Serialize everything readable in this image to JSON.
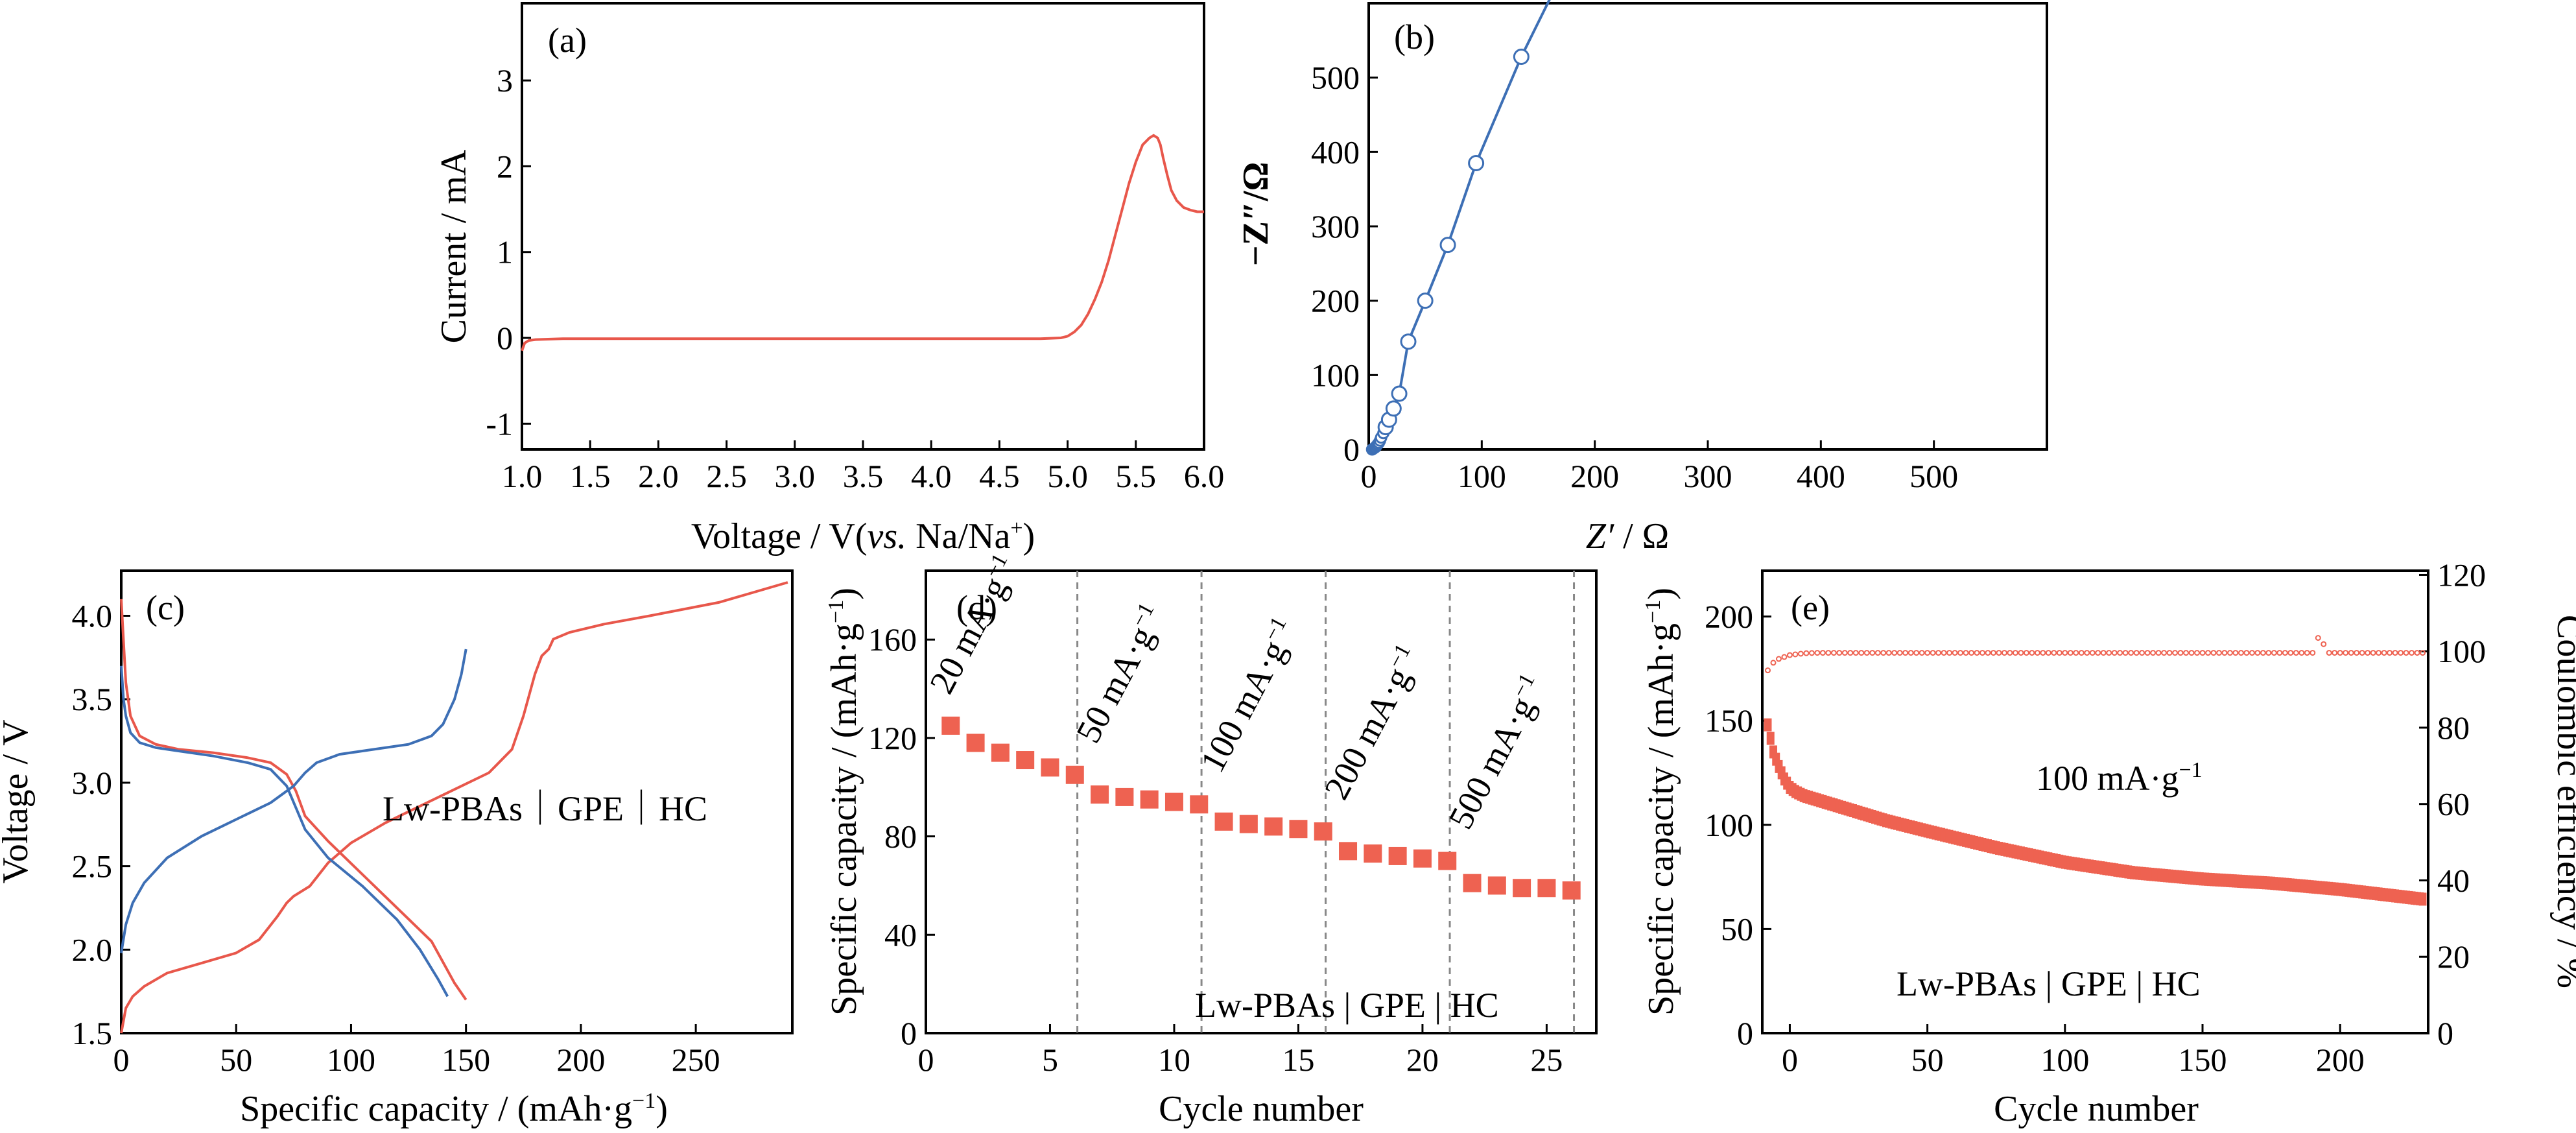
{
  "chart_data": [
    {
      "id": "a",
      "type": "line",
      "panel_label": "(a)",
      "xlabel_main": "Voltage / V(",
      "xlabel_italic": "vs.",
      "xlabel_tail": " Na/Na",
      "xlabel_sup": "+",
      "xlabel_close": ")",
      "ylabel": "Current / mA",
      "xlim": [
        1.0,
        6.0
      ],
      "ylim": [
        -1.3,
        3.9
      ],
      "xticks": [
        "1.0",
        "1.5",
        "2.0",
        "2.5",
        "3.0",
        "3.5",
        "4.0",
        "4.5",
        "5.0",
        "5.5",
        "6.0"
      ],
      "yticks": [
        "-1",
        "0",
        "1",
        "2",
        "3"
      ],
      "line_color": "#e8574b",
      "series": [
        {
          "x": [
            1.0,
            1.02,
            1.05,
            1.1,
            1.3,
            1.5,
            2.0,
            2.5,
            3.0,
            3.5,
            4.0,
            4.5,
            4.8,
            4.95,
            5.0,
            5.05,
            5.1,
            5.15,
            5.2,
            5.25,
            5.3,
            5.35,
            5.4,
            5.45,
            5.5,
            5.55,
            5.6,
            5.63,
            5.66,
            5.68,
            5.7,
            5.73,
            5.76,
            5.8,
            5.85,
            5.9,
            5.95,
            6.0
          ],
          "y": [
            -0.15,
            -0.06,
            -0.03,
            -0.02,
            -0.01,
            -0.01,
            -0.01,
            -0.01,
            -0.01,
            -0.01,
            -0.01,
            -0.01,
            -0.01,
            0.0,
            0.02,
            0.07,
            0.15,
            0.28,
            0.45,
            0.65,
            0.9,
            1.2,
            1.5,
            1.8,
            2.05,
            2.25,
            2.33,
            2.36,
            2.33,
            2.25,
            2.1,
            1.9,
            1.72,
            1.6,
            1.52,
            1.49,
            1.47,
            1.47
          ]
        }
      ]
    },
    {
      "id": "b",
      "type": "scatter",
      "panel_label": "(b)",
      "xlabel_main": "Z′",
      "xlabel_tail": " / Ω",
      "ylabel_main": "−Z″",
      "ylabel_tail": "/Ω",
      "xlim": [
        0,
        600
      ],
      "ylim": [
        0,
        600
      ],
      "xticks": [
        "0",
        "100",
        "200",
        "300",
        "400",
        "500"
      ],
      "yticks": [
        "0",
        "100",
        "200",
        "300",
        "400",
        "500"
      ],
      "line_color": "#3d6fb5",
      "series": [
        {
          "x": [
            3,
            4,
            5,
            6,
            7,
            8,
            9,
            10,
            11,
            13,
            15,
            18,
            22,
            27,
            35,
            50,
            70,
            95,
            135,
            160
          ],
          "y": [
            0,
            1,
            2,
            3,
            5,
            7,
            9,
            12,
            16,
            22,
            30,
            40,
            55,
            75,
            145,
            200,
            275,
            385,
            528,
            605
          ],
          "markers": [
            true,
            true,
            true,
            true,
            true,
            true,
            true,
            true,
            true,
            true,
            true,
            true,
            true,
            true,
            true,
            true,
            true,
            true,
            true,
            false
          ]
        }
      ]
    },
    {
      "id": "c",
      "type": "line",
      "panel_label": "(c)",
      "annotation": "Lw-PBAs｜GPE｜HC",
      "xlabel": "Specific capacity / (mAh·g",
      "xlabel_sup": "−1",
      "xlabel_close": ")",
      "ylabel": "Voltage / V",
      "xlim": [
        0,
        292
      ],
      "ylim": [
        1.5,
        4.27
      ],
      "xticks": [
        "0",
        "50",
        "100",
        "150",
        "200",
        "250"
      ],
      "yticks": [
        "1.5",
        "2.0",
        "2.5",
        "3.0",
        "3.5",
        "4.0"
      ],
      "series": [
        {
          "color": "#e8574b",
          "x": [
            0,
            2,
            5,
            10,
            20,
            35,
            50,
            60,
            68,
            72,
            75,
            82,
            90,
            100,
            115,
            130,
            145,
            160,
            170,
            175,
            180,
            183,
            186,
            188,
            195,
            210,
            230,
            260,
            290
          ],
          "y": [
            1.5,
            1.65,
            1.72,
            1.78,
            1.86,
            1.92,
            1.98,
            2.06,
            2.2,
            2.28,
            2.32,
            2.38,
            2.52,
            2.64,
            2.76,
            2.86,
            2.96,
            3.06,
            3.2,
            3.4,
            3.65,
            3.76,
            3.8,
            3.86,
            3.9,
            3.95,
            4.0,
            4.08,
            4.2
          ]
        },
        {
          "color": "#e8574b",
          "x": [
            0,
            1,
            2,
            4,
            8,
            15,
            25,
            40,
            55,
            65,
            72,
            76,
            80,
            90,
            105,
            120,
            135,
            145,
            150
          ],
          "y": [
            4.1,
            3.85,
            3.6,
            3.4,
            3.28,
            3.23,
            3.2,
            3.18,
            3.15,
            3.12,
            3.05,
            2.95,
            2.8,
            2.65,
            2.45,
            2.25,
            2.05,
            1.8,
            1.7
          ]
        },
        {
          "color": "#3d6fb5",
          "x": [
            0,
            2,
            5,
            10,
            20,
            35,
            50,
            65,
            75,
            80,
            85,
            95,
            110,
            125,
            135,
            140,
            145,
            148,
            150
          ],
          "y": [
            1.98,
            2.15,
            2.28,
            2.4,
            2.55,
            2.68,
            2.78,
            2.88,
            2.98,
            3.06,
            3.12,
            3.17,
            3.2,
            3.23,
            3.28,
            3.35,
            3.5,
            3.65,
            3.8
          ]
        },
        {
          "color": "#3d6fb5",
          "x": [
            0,
            1,
            2,
            4,
            8,
            15,
            25,
            40,
            55,
            65,
            72,
            76,
            80,
            90,
            105,
            120,
            130,
            138,
            142
          ],
          "y": [
            3.7,
            3.5,
            3.4,
            3.3,
            3.24,
            3.21,
            3.19,
            3.16,
            3.12,
            3.08,
            2.98,
            2.85,
            2.72,
            2.55,
            2.38,
            2.18,
            2.0,
            1.82,
            1.72
          ]
        }
      ]
    },
    {
      "id": "d",
      "type": "scatter",
      "panel_label": "(d)",
      "annotation": "Lw-PBAs | GPE | HC",
      "xlabel": "Cycle number",
      "ylabel": "Specific capacity / (mAh·g",
      "ylabel_sup": "−1",
      "ylabel_close": ")",
      "xlim": [
        0,
        27
      ],
      "ylim": [
        0,
        188
      ],
      "xticks": [
        "0",
        "5",
        "10",
        "15",
        "20",
        "25"
      ],
      "yticks": [
        "0",
        "40",
        "80",
        "120",
        "160"
      ],
      "marker_color": "#ee6251",
      "dividers": [
        6.1,
        11.1,
        16.1,
        21.1,
        26.1
      ],
      "rate_labels": [
        "20 mA·g",
        "50 mA·g",
        "100 mA·g",
        "200 mA·g",
        "500 mA·g"
      ],
      "rate_sup": "−1",
      "series": [
        {
          "x": [
            1,
            2,
            3,
            4,
            5,
            6,
            7,
            8,
            9,
            10,
            11,
            12,
            13,
            14,
            15,
            16,
            17,
            18,
            19,
            20,
            21,
            22,
            23,
            24,
            25,
            26
          ],
          "y": [
            125,
            118,
            114,
            111,
            108,
            105,
            97,
            96,
            95,
            94,
            93,
            86,
            85,
            84,
            83,
            82,
            74,
            73,
            72,
            71,
            70,
            61,
            60,
            59,
            59,
            58
          ]
        }
      ]
    },
    {
      "id": "e",
      "type": "scatter",
      "panel_label": "(e)",
      "annotation": "Lw-PBAs | GPE | HC",
      "rate_text": "100 mA·g",
      "rate_sup": "−1",
      "xlabel": "Cycle number",
      "ylabel_left": "Specific capacity / (mAh·g",
      "ylabel_left_sup": "−1",
      "ylabel_left_close": ")",
      "ylabel_right": "Coulombic efficiency / %",
      "xlim": [
        -10,
        232
      ],
      "ylim_left": [
        0,
        222
      ],
      "ylim_right": [
        0,
        121.1
      ],
      "xticks": [
        "0",
        "50",
        "100",
        "150",
        "200"
      ],
      "yticks_left": [
        "0",
        "50",
        "100",
        "150",
        "200"
      ],
      "yticks_right": [
        "0",
        "20",
        "40",
        "60",
        "80",
        "100",
        "120"
      ],
      "marker_color": "#ee6251",
      "capacity_curve": {
        "x": [
          -8,
          -6,
          -4,
          -2,
          0,
          2,
          5,
          10,
          20,
          35,
          50,
          75,
          100,
          125,
          150,
          175,
          200,
          232
        ],
        "y": [
          148,
          135,
          128,
          122,
          118,
          116,
          114,
          112,
          108,
          102,
          97,
          89,
          82,
          77,
          74,
          72,
          69,
          64
        ]
      },
      "efficiency_curve": {
        "x": [
          -8,
          -6,
          -4,
          -2,
          0,
          3,
          6,
          10,
          30,
          60,
          100,
          150,
          190,
          193,
          196,
          232
        ],
        "y": [
          95,
          97,
          98,
          98.5,
          99,
          99.3,
          99.5,
          99.6,
          99.6,
          99.6,
          99.6,
          99.6,
          99.6,
          103,
          99.6,
          99.6
        ]
      }
    }
  ]
}
